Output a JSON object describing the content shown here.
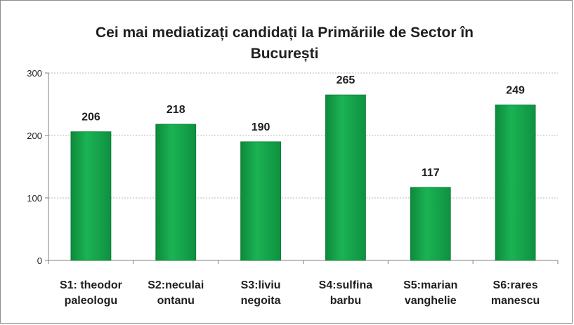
{
  "chart_data": {
    "type": "bar",
    "title_lines": [
      "Cei mai mediatizați candidați la Primăriile de Sector în",
      "București"
    ],
    "categories": [
      [
        "S1: theodor",
        "paleologu"
      ],
      [
        "S2:neculai",
        "ontanu"
      ],
      [
        "S3:liviu",
        "negoita"
      ],
      [
        "S4:sulfina",
        "barbu"
      ],
      [
        "S5:marian",
        "vanghelie"
      ],
      [
        "S6:rares",
        "manescu"
      ]
    ],
    "values": [
      206,
      218,
      190,
      265,
      117,
      249
    ],
    "ylim": [
      0,
      300
    ],
    "yticks": [
      0,
      100,
      200,
      300
    ],
    "grid": true,
    "legend": "none",
    "bar_color": "#12a64a",
    "bar_edge_color": "#0b7a33"
  }
}
